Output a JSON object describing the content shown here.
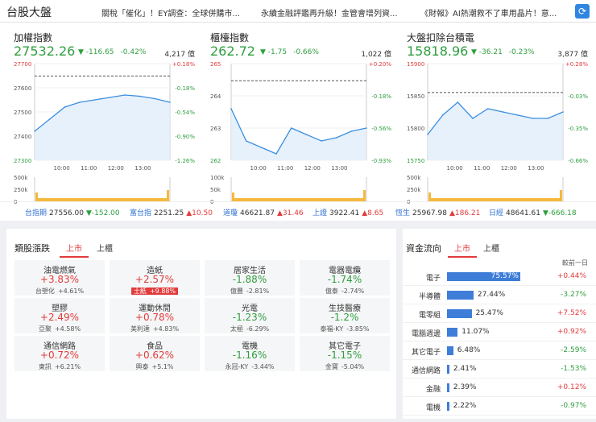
{
  "header": {
    "title": "台股大盤",
    "news": [
      "關稅「催化」！EY調查：全球併購市...",
      "永續金融評鑑再升級！金管會增列資...",
      "《財報》AI熱潮救不了車用晶片！意..."
    ]
  },
  "indices": [
    {
      "name": "加權指數",
      "price": "27532.26",
      "change": "▼ -116.65",
      "pct": "-0.42%",
      "volume": "4,217 億",
      "yticks": [
        "27700",
        "27600",
        "27500",
        "27400",
        "27300"
      ],
      "pticks": [
        "+0.18%",
        "-0.18%",
        "-0.54%",
        "-0.90%",
        "-1.26%"
      ],
      "xticks": [
        "10:00",
        "11:00",
        "12:00",
        "13:00"
      ],
      "vticks": [
        "500k",
        "250k",
        "0"
      ],
      "chart_data": {
        "type": "line",
        "x": [
          "09:00",
          "09:30",
          "10:00",
          "10:30",
          "11:00",
          "11:30",
          "12:00",
          "12:30",
          "13:00",
          "13:30"
        ],
        "y": [
          27420,
          27470,
          27520,
          27540,
          27550,
          27560,
          27570,
          27565,
          27555,
          27540
        ],
        "ylim": [
          27300,
          27700
        ],
        "ref": 27648.91,
        "vol_ylim": [
          0,
          500
        ]
      }
    },
    {
      "name": "櫃檯指數",
      "price": "262.72",
      "change": "▼ -1.75",
      "pct": "-0.66%",
      "volume": "1,022 億",
      "yticks": [
        "265",
        "264",
        "263",
        "262"
      ],
      "pticks": [
        "+0.20%",
        "-0.18%",
        "-0.56%",
        "-0.93%"
      ],
      "xticks": [
        "10:00",
        "11:00",
        "12:00",
        "13:00"
      ],
      "vticks": [
        "100k",
        "50k",
        "0"
      ],
      "chart_data": {
        "type": "line",
        "x": [
          "09:00",
          "09:30",
          "10:00",
          "10:30",
          "11:00",
          "11:30",
          "12:00",
          "12:30",
          "13:00",
          "13:30"
        ],
        "y": [
          263.6,
          262.6,
          262.4,
          262.2,
          263.0,
          262.8,
          262.6,
          262.7,
          262.9,
          263.0
        ],
        "ylim": [
          262,
          265
        ],
        "ref": 264.47,
        "vol_ylim": [
          0,
          100
        ]
      }
    },
    {
      "name": "大盤扣除台積電",
      "price": "15818.96",
      "change": "▼ -36.21",
      "pct": "-0.23%",
      "volume": "3,877 億",
      "yticks": [
        "15900",
        "15850",
        "15800",
        "15750"
      ],
      "pticks": [
        "+0.28%",
        "-0.03%",
        "-0.35%",
        "-0.66%"
      ],
      "xticks": [
        "10:00",
        "11:00",
        "12:00",
        "13:00"
      ],
      "vticks": [
        "500k",
        "250k",
        "0"
      ],
      "chart_data": {
        "type": "line",
        "x": [
          "09:00",
          "09:30",
          "10:00",
          "10:30",
          "11:00",
          "11:30",
          "12:00",
          "12:30",
          "13:00",
          "13:30"
        ],
        "y": [
          15790,
          15820,
          15840,
          15815,
          15830,
          15825,
          15820,
          15815,
          15815,
          15825
        ],
        "ylim": [
          15750,
          15900
        ],
        "ref": 15855.17,
        "vol_ylim": [
          0,
          500
        ]
      }
    }
  ],
  "ticker": [
    {
      "name": "台指期",
      "value": "27556.00",
      "change": "▼-152.00",
      "dir": "dn"
    },
    {
      "name": "富台指",
      "value": "2251.25",
      "change": "▲10.50",
      "dir": "up"
    },
    {
      "name": "道瓊",
      "value": "46621.87",
      "change": "▲31.46",
      "dir": "up"
    },
    {
      "name": "上證",
      "value": "3922.41",
      "change": "▲8.65",
      "dir": "up"
    },
    {
      "name": "恆生",
      "value": "25967.98",
      "change": "▲186.21",
      "dir": "up"
    },
    {
      "name": "日經",
      "value": "48641.61",
      "change": "▼-666.18",
      "dir": "dn"
    }
  ],
  "sector": {
    "title": "類股漲跌",
    "tabs": [
      "上市",
      "上櫃"
    ],
    "tiles": [
      {
        "name": "油電燃氣",
        "pct": "+3.83%",
        "stock": "台塑化",
        "spct": "+4.61%",
        "dir": "up"
      },
      {
        "name": "造紙",
        "pct": "+2.57%",
        "stock": "士紙",
        "spct": "+9.88%",
        "dir": "up",
        "hl": true
      },
      {
        "name": "居家生活",
        "pct": "-1.88%",
        "stock": "億豐",
        "spct": "-2.81%",
        "dir": "dn"
      },
      {
        "name": "電器電纜",
        "pct": "-1.74%",
        "stock": "億泰",
        "spct": "-2.74%",
        "dir": "dn"
      },
      {
        "name": "塑膠",
        "pct": "+2.49%",
        "stock": "亞聚",
        "spct": "+4.58%",
        "dir": "up"
      },
      {
        "name": "運動休閒",
        "pct": "+0.78%",
        "stock": "美利達",
        "spct": "+4.83%",
        "dir": "up"
      },
      {
        "name": "光電",
        "pct": "-1.23%",
        "stock": "太極",
        "spct": "-6.29%",
        "dir": "dn"
      },
      {
        "name": "生技醫療",
        "pct": "-1.2%",
        "stock": "泰福-KY",
        "spct": "-3.85%",
        "dir": "dn"
      },
      {
        "name": "通信網路",
        "pct": "+0.72%",
        "stock": "東訊",
        "spct": "+6.21%",
        "dir": "up"
      },
      {
        "name": "食品",
        "pct": "+0.62%",
        "stock": "興泰",
        "spct": "+5.1%",
        "dir": "up"
      },
      {
        "name": "電機",
        "pct": "-1.16%",
        "stock": "永冠-KY",
        "spct": "-3.44%",
        "dir": "dn"
      },
      {
        "name": "其它電子",
        "pct": "-1.15%",
        "stock": "金寶",
        "spct": "-5.04%",
        "dir": "dn"
      }
    ]
  },
  "flow": {
    "title": "資金流向",
    "tabs": [
      "上市",
      "上櫃"
    ],
    "prev_label": "較前一日",
    "rows": [
      {
        "name": "電子",
        "value": "75.57%",
        "pct": 75.57,
        "change": "+0.44%",
        "dir": "up"
      },
      {
        "name": "半導體",
        "value": "27.44%",
        "pct": 27.44,
        "change": "-3.27%",
        "dir": "dn"
      },
      {
        "name": "電零組",
        "value": "25.47%",
        "pct": 25.47,
        "change": "+7.52%",
        "dir": "up"
      },
      {
        "name": "電腦週邊",
        "value": "11.07%",
        "pct": 11.07,
        "change": "+0.92%",
        "dir": "up"
      },
      {
        "name": "其它電子",
        "value": "6.48%",
        "pct": 6.48,
        "change": "-2.59%",
        "dir": "dn"
      },
      {
        "name": "通信網路",
        "value": "2.41%",
        "pct": 2.41,
        "change": "-1.53%",
        "dir": "dn"
      },
      {
        "name": "金融",
        "value": "2.39%",
        "pct": 2.39,
        "change": "+0.12%",
        "dir": "up"
      },
      {
        "name": "電機",
        "value": "2.22%",
        "pct": 2.22,
        "change": "-0.97%",
        "dir": "dn"
      }
    ]
  }
}
